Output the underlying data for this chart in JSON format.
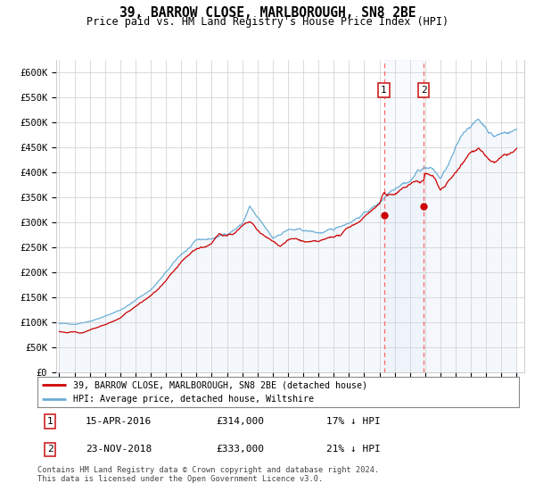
{
  "title": "39, BARROW CLOSE, MARLBOROUGH, SN8 2BE",
  "subtitle": "Price paid vs. HM Land Registry's House Price Index (HPI)",
  "ylabel_ticks": [
    "£0",
    "£50K",
    "£100K",
    "£150K",
    "£200K",
    "£250K",
    "£300K",
    "£350K",
    "£400K",
    "£450K",
    "£500K",
    "£550K",
    "£600K"
  ],
  "ytick_vals": [
    0,
    50000,
    100000,
    150000,
    200000,
    250000,
    300000,
    350000,
    400000,
    450000,
    500000,
    550000,
    600000
  ],
  "ylim": [
    0,
    625000
  ],
  "xlim_start": 1994.8,
  "xlim_end": 2025.5,
  "hpi_color": "#6baed6",
  "hpi_fill_color": "#c6dbef",
  "price_color": "#cc0000",
  "transaction1": {
    "date": "15-APR-2016",
    "price": 314000,
    "label": "1",
    "year": 2016.29,
    "hpi_pct": "17% ↓ HPI"
  },
  "transaction2": {
    "date": "23-NOV-2018",
    "price": 333000,
    "label": "2",
    "year": 2018.9,
    "hpi_pct": "21% ↓ HPI"
  },
  "legend_property": "39, BARROW CLOSE, MARLBOROUGH, SN8 2BE (detached house)",
  "legend_hpi": "HPI: Average price, detached house, Wiltshire",
  "footnote": "Contains HM Land Registry data © Crown copyright and database right 2024.\nThis data is licensed under the Open Government Licence v3.0.",
  "background_color": "#ffffff",
  "grid_color": "#cccccc"
}
